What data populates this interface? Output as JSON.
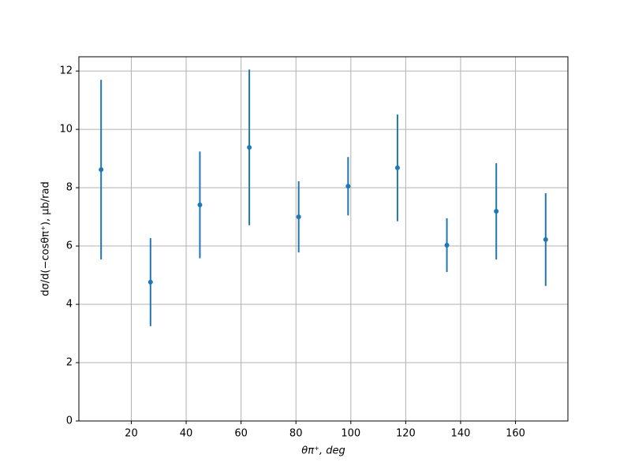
{
  "chart_data": {
    "type": "errorbar",
    "x_label": "θπ⁺, deg",
    "y_label": "dσ/d(−cosθπ⁺), μb/rad",
    "x": [
      9,
      27,
      45,
      63,
      81,
      99,
      117,
      135,
      153,
      171
    ],
    "values": [
      8.62,
      4.76,
      7.41,
      9.38,
      7.0,
      8.05,
      8.68,
      6.03,
      7.19,
      6.22
    ],
    "errors": [
      3.08,
      1.51,
      1.83,
      2.67,
      1.22,
      1.0,
      1.83,
      0.92,
      1.65,
      1.59
    ],
    "color": "#1f77b4",
    "xlim": [
      0.9,
      179.1
    ],
    "xticks": [
      20,
      40,
      60,
      80,
      100,
      120,
      140,
      160
    ],
    "ylim": [
      0,
      12.49
    ],
    "yticks": [
      0,
      2,
      4,
      6,
      8,
      10,
      12
    ],
    "grid": true
  }
}
